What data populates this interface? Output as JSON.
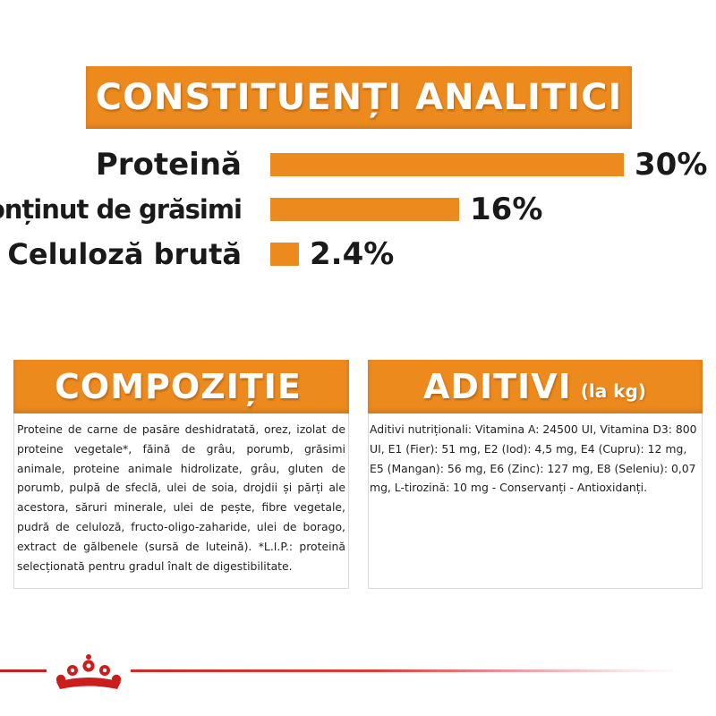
{
  "colors": {
    "accent": "#ec8a1e",
    "brand_red": "#cc1d1d",
    "text": "#1a1a1a"
  },
  "analitici": {
    "title": "CONSTITUENȚI ANALITICI",
    "rows": [
      {
        "label": "Proteină",
        "value_text": "30%",
        "value": 30
      },
      {
        "label": "Conținut de grăsimi",
        "value_text": "16%",
        "value": 16
      },
      {
        "label": "Celuloză brută",
        "value_text": "2.4%",
        "value": 2.4
      }
    ]
  },
  "compozitie": {
    "title": "COMPOZIȚIE",
    "text": "Proteine de carne de pasăre deshidratată, orez, izolat de proteine vegetale*, făină de grâu, porumb, grăsimi animale, proteine animale hidrolizate, grâu, gluten de porumb, pulpă de sfeclă, ulei de soia, drojdii și părți ale acestora, săruri minerale, ulei de pește, fibre vegetale, pudră de celuloză, fructo-oligo-zaharide, ulei de borago, extract de gălbenele (sursă de luteină). *L.I.P.: proteină selecționată pentru gradul înalt de digestibilitate."
  },
  "aditivi": {
    "title": "ADITIVI",
    "subtitle": "(la kg)",
    "text": "Aditivi nutriționali: Vitamina A: 24500 UI, Vitamina D3: 800 UI, E1 (Fier): 51 mg, E2 (Iod): 4,5 mg, E4 (Cupru): 12 mg, E5 (Mangan): 56 mg, E6 (Zinc): 127 mg, E8 (Seleniu): 0,07 mg, L-tirozină: 10 mg - Conservanți - Antioxidanți."
  },
  "footer": {
    "logo_icon": "crown-icon"
  }
}
